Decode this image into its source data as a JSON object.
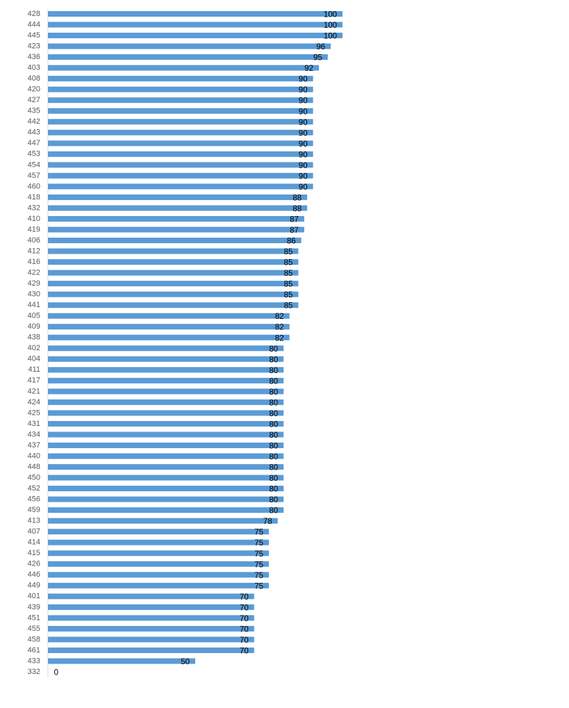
{
  "chart_data": {
    "type": "hbar",
    "categories": [
      "428",
      "444",
      "445",
      "423",
      "436",
      "403",
      "408",
      "420",
      "427",
      "435",
      "442",
      "443",
      "447",
      "453",
      "454",
      "457",
      "460",
      "418",
      "432",
      "410",
      "419",
      "406",
      "412",
      "416",
      "422",
      "429",
      "430",
      "441",
      "405",
      "409",
      "438",
      "402",
      "404",
      "411",
      "417",
      "421",
      "424",
      "425",
      "431",
      "434",
      "437",
      "440",
      "448",
      "450",
      "452",
      "456",
      "459",
      "413",
      "407",
      "414",
      "415",
      "426",
      "446",
      "449",
      "401",
      "439",
      "451",
      "455",
      "458",
      "461",
      "433",
      "332"
    ],
    "values": [
      100,
      100,
      100,
      96,
      95,
      92,
      90,
      90,
      90,
      90,
      90,
      90,
      90,
      90,
      90,
      90,
      90,
      88,
      88,
      87,
      87,
      86,
      85,
      85,
      85,
      85,
      85,
      85,
      82,
      82,
      82,
      80,
      80,
      80,
      80,
      80,
      80,
      80,
      80,
      80,
      80,
      80,
      80,
      80,
      80,
      80,
      80,
      78,
      75,
      75,
      75,
      75,
      75,
      75,
      70,
      70,
      70,
      70,
      70,
      70,
      50,
      0
    ],
    "color": "#5b9bd5",
    "xlim": [
      0,
      100
    ]
  }
}
